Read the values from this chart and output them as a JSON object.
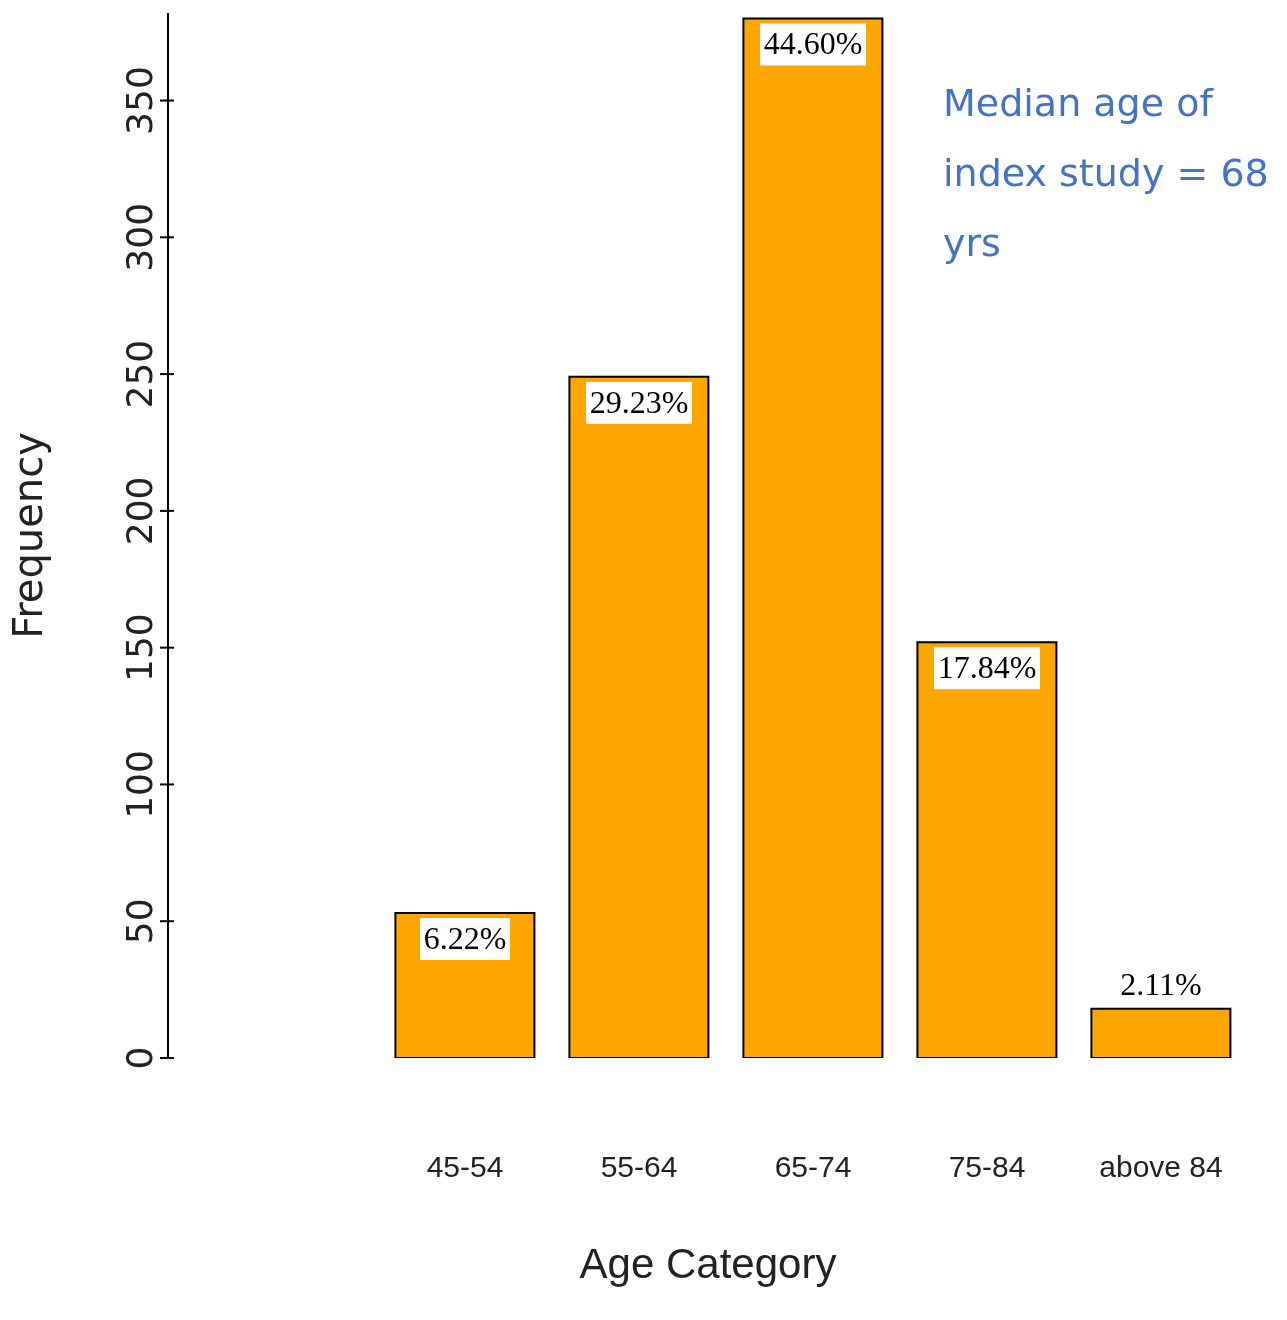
{
  "chart_data": {
    "type": "bar",
    "xlabel": "Age Category",
    "ylabel": "Frequency",
    "categories": [
      "45-54",
      "55-64",
      "65-74",
      "75-84",
      "above 84"
    ],
    "values": [
      53,
      249,
      380,
      152,
      18
    ],
    "color": "#ffa500",
    "ylim": [
      0,
      382
    ],
    "yticks": [
      0,
      50,
      100,
      150,
      200,
      250,
      300,
      350
    ],
    "annotations": [
      "Median age of index study = 68 yrs",
      {
        "text": "6.22%",
        "x": "45-54",
        "y": 53
      },
      {
        "text": "29.23%",
        "x": "55-64",
        "y": 249
      },
      {
        "text": "44.60%",
        "x": "65-74",
        "y": 380
      },
      {
        "text": "17.84%",
        "x": "75-84",
        "y": 152
      },
      {
        "text": "2.11%",
        "x": "above 84",
        "y": 18
      }
    ]
  }
}
